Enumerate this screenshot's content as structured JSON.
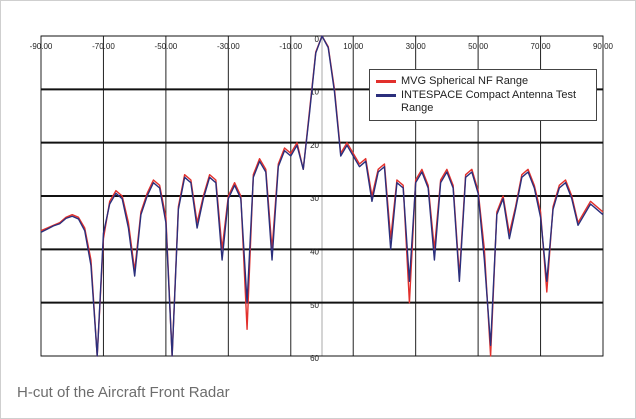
{
  "chart_data": {
    "type": "line",
    "caption": "H-cut of the Aircraft Front Radar",
    "xlim": [
      -90,
      90
    ],
    "xticks": [
      {
        "value": -90,
        "label": "-90.00"
      },
      {
        "value": -70,
        "label": "-70.00"
      },
      {
        "value": -50,
        "label": "-50.00"
      },
      {
        "value": -30,
        "label": "-30.00"
      },
      {
        "value": -10,
        "label": "-10.00"
      },
      {
        "value": 10,
        "label": "10.00"
      },
      {
        "value": 30,
        "label": "30.00"
      },
      {
        "value": 50,
        "label": "50.00"
      },
      {
        "value": 70,
        "label": "70.00"
      },
      {
        "value": 90,
        "label": "90.00"
      }
    ],
    "ylim": [
      60,
      0
    ],
    "yticks": [
      0,
      10,
      20,
      30,
      40,
      50,
      60
    ],
    "grid": true,
    "legend": "top-right",
    "x": [
      -90,
      -88,
      -86,
      -84,
      -82,
      -80,
      -78,
      -76,
      -74,
      -72,
      -70,
      -68,
      -66,
      -64,
      -62,
      -60,
      -58,
      -56,
      -54,
      -52,
      -50,
      -48,
      -46,
      -44,
      -42,
      -40,
      -38,
      -36,
      -34,
      -32,
      -30,
      -28,
      -26,
      -24,
      -22,
      -20,
      -18,
      -16,
      -14,
      -12,
      -10,
      -8,
      -6,
      -4,
      -2,
      0,
      2,
      4,
      6,
      8,
      10,
      12,
      14,
      16,
      18,
      20,
      22,
      24,
      26,
      28,
      30,
      32,
      34,
      36,
      38,
      40,
      42,
      44,
      46,
      48,
      50,
      52,
      54,
      56,
      58,
      60,
      62,
      64,
      66,
      68,
      70,
      72,
      74,
      76,
      78,
      80,
      82,
      84,
      86,
      88,
      90
    ],
    "series": [
      {
        "name": "MVG Spherical NF Range",
        "color": "#e2302c",
        "values": [
          36.5,
          36,
          35.5,
          35,
          34,
          33.5,
          34,
          36,
          42,
          60,
          38,
          31,
          29,
          30,
          35,
          44,
          33,
          29.5,
          27,
          28,
          34,
          60,
          32,
          26,
          27,
          35,
          30,
          26,
          27,
          40,
          30,
          27.5,
          30,
          55,
          26,
          23,
          25,
          40,
          24,
          21,
          22,
          20,
          25,
          14,
          3,
          0,
          2,
          10,
          22,
          20,
          22,
          24,
          23,
          30,
          25,
          24,
          38,
          27,
          28,
          50,
          27,
          25,
          28,
          40,
          27,
          25,
          28,
          45,
          26,
          25,
          29,
          40,
          60,
          33,
          30,
          37,
          32,
          26,
          25,
          28,
          33,
          48,
          32,
          28,
          27,
          30,
          35,
          33,
          31,
          32,
          33
        ]
      },
      {
        "name": "INTESPACE Compact Antenna Test Range",
        "color": "#2b2f7c",
        "values": [
          36.8,
          36.2,
          35.6,
          35.2,
          34.2,
          33.8,
          34.3,
          36.5,
          43,
          60,
          37,
          31.5,
          29.5,
          30.5,
          36,
          45,
          33.5,
          30,
          27.5,
          28.5,
          35,
          60,
          32.5,
          26.5,
          27.5,
          36,
          30.5,
          26.5,
          27.5,
          42,
          30.5,
          28,
          30.5,
          50,
          26.5,
          23.5,
          25.5,
          42,
          24.5,
          21.5,
          22.5,
          20.5,
          25,
          14.5,
          3.2,
          0,
          2.2,
          10.5,
          22.5,
          20.5,
          22.5,
          24.5,
          23.5,
          31,
          25.5,
          24.5,
          40,
          27.5,
          28.5,
          46,
          27.5,
          25.5,
          28.5,
          42,
          27.5,
          25.5,
          28.5,
          46,
          26.5,
          25.5,
          29.5,
          42,
          58,
          33.5,
          30.5,
          38,
          32.5,
          26.5,
          25.5,
          28.5,
          34,
          46,
          32.5,
          28.5,
          27.5,
          30.5,
          35.5,
          33.5,
          31.5,
          32.5,
          33.5
        ]
      }
    ]
  }
}
